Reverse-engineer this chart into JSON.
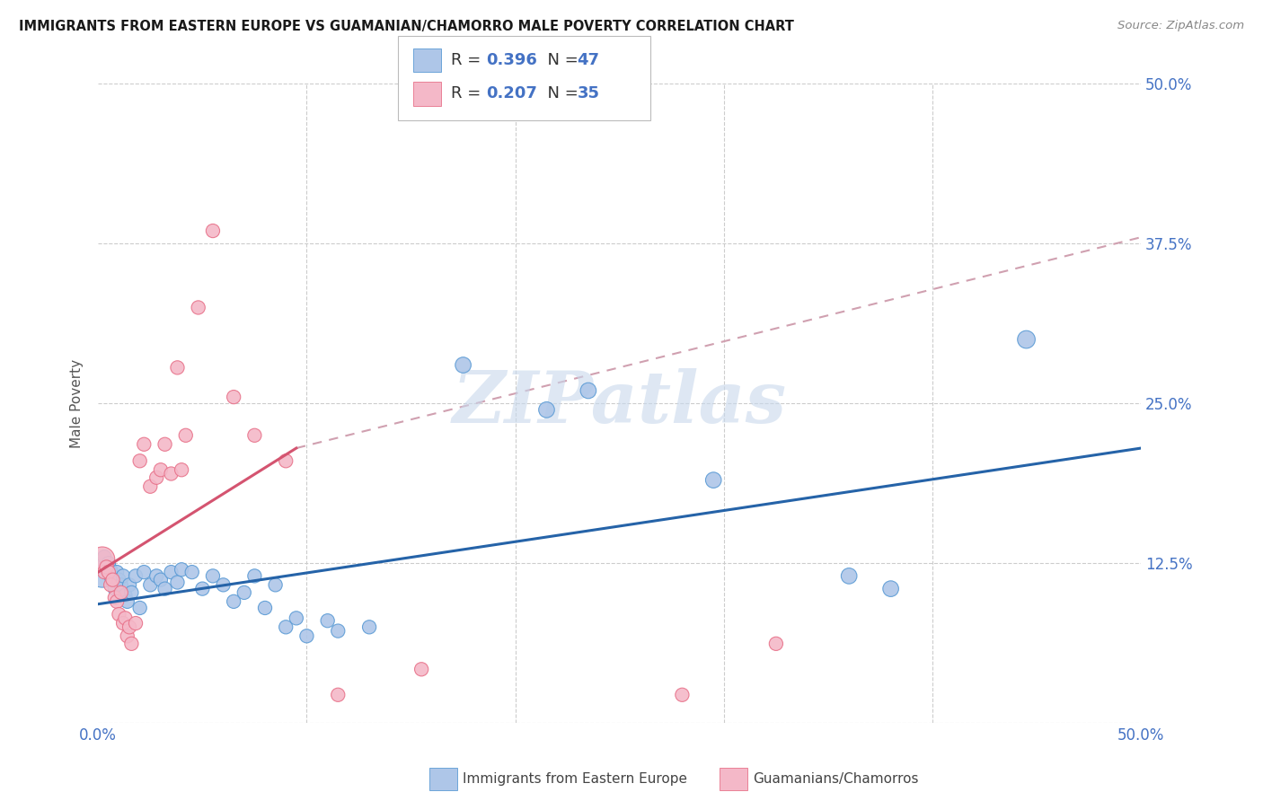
{
  "title": "IMMIGRANTS FROM EASTERN EUROPE VS GUAMANIAN/CHAMORRO MALE POVERTY CORRELATION CHART",
  "source": "Source: ZipAtlas.com",
  "ylabel": "Male Poverty",
  "ytick_values": [
    0.0,
    0.125,
    0.25,
    0.375,
    0.5
  ],
  "ytick_labels": [
    "",
    "12.5%",
    "25.0%",
    "37.5%",
    "50.0%"
  ],
  "xlim": [
    0,
    0.5
  ],
  "ylim": [
    0,
    0.5
  ],
  "blue_label": "Immigrants from Eastern Europe",
  "pink_label": "Guamanians/Chamorros",
  "blue_color": "#aec6e8",
  "pink_color": "#f4b8c8",
  "blue_edge_color": "#5b9bd5",
  "pink_edge_color": "#e8728a",
  "blue_line_color": "#2563a8",
  "pink_line_color": "#d45470",
  "dashed_line_color": "#d0a0b0",
  "watermark_color": "#c8d8ec",
  "blue_points": [
    [
      0.002,
      0.118
    ],
    [
      0.003,
      0.13
    ],
    [
      0.004,
      0.12
    ],
    [
      0.005,
      0.125
    ],
    [
      0.006,
      0.115
    ],
    [
      0.007,
      0.11
    ],
    [
      0.008,
      0.105
    ],
    [
      0.009,
      0.118
    ],
    [
      0.01,
      0.112
    ],
    [
      0.011,
      0.108
    ],
    [
      0.012,
      0.115
    ],
    [
      0.013,
      0.1
    ],
    [
      0.014,
      0.095
    ],
    [
      0.015,
      0.108
    ],
    [
      0.016,
      0.102
    ],
    [
      0.018,
      0.115
    ],
    [
      0.02,
      0.09
    ],
    [
      0.022,
      0.118
    ],
    [
      0.025,
      0.108
    ],
    [
      0.028,
      0.115
    ],
    [
      0.03,
      0.112
    ],
    [
      0.032,
      0.105
    ],
    [
      0.035,
      0.118
    ],
    [
      0.038,
      0.11
    ],
    [
      0.04,
      0.12
    ],
    [
      0.045,
      0.118
    ],
    [
      0.05,
      0.105
    ],
    [
      0.055,
      0.115
    ],
    [
      0.06,
      0.108
    ],
    [
      0.065,
      0.095
    ],
    [
      0.07,
      0.102
    ],
    [
      0.075,
      0.115
    ],
    [
      0.08,
      0.09
    ],
    [
      0.085,
      0.108
    ],
    [
      0.09,
      0.075
    ],
    [
      0.095,
      0.082
    ],
    [
      0.1,
      0.068
    ],
    [
      0.11,
      0.08
    ],
    [
      0.115,
      0.072
    ],
    [
      0.13,
      0.075
    ],
    [
      0.175,
      0.28
    ],
    [
      0.215,
      0.245
    ],
    [
      0.235,
      0.26
    ],
    [
      0.295,
      0.19
    ],
    [
      0.36,
      0.115
    ],
    [
      0.38,
      0.105
    ],
    [
      0.445,
      0.3
    ]
  ],
  "pink_points": [
    [
      0.002,
      0.128
    ],
    [
      0.003,
      0.118
    ],
    [
      0.004,
      0.122
    ],
    [
      0.005,
      0.118
    ],
    [
      0.006,
      0.108
    ],
    [
      0.007,
      0.112
    ],
    [
      0.008,
      0.098
    ],
    [
      0.009,
      0.095
    ],
    [
      0.01,
      0.085
    ],
    [
      0.011,
      0.102
    ],
    [
      0.012,
      0.078
    ],
    [
      0.013,
      0.082
    ],
    [
      0.014,
      0.068
    ],
    [
      0.015,
      0.075
    ],
    [
      0.016,
      0.062
    ],
    [
      0.018,
      0.078
    ],
    [
      0.02,
      0.205
    ],
    [
      0.022,
      0.218
    ],
    [
      0.025,
      0.185
    ],
    [
      0.028,
      0.192
    ],
    [
      0.03,
      0.198
    ],
    [
      0.032,
      0.218
    ],
    [
      0.035,
      0.195
    ],
    [
      0.038,
      0.278
    ],
    [
      0.04,
      0.198
    ],
    [
      0.042,
      0.225
    ],
    [
      0.048,
      0.325
    ],
    [
      0.055,
      0.385
    ],
    [
      0.065,
      0.255
    ],
    [
      0.075,
      0.225
    ],
    [
      0.09,
      0.205
    ],
    [
      0.115,
      0.022
    ],
    [
      0.155,
      0.042
    ],
    [
      0.28,
      0.022
    ],
    [
      0.325,
      0.062
    ]
  ],
  "blue_sizes": [
    600,
    120,
    120,
    120,
    120,
    120,
    120,
    120,
    120,
    120,
    120,
    120,
    120,
    120,
    120,
    120,
    120,
    120,
    120,
    120,
    120,
    120,
    120,
    120,
    120,
    120,
    120,
    120,
    120,
    120,
    120,
    120,
    120,
    120,
    120,
    120,
    120,
    120,
    120,
    120,
    160,
    160,
    160,
    160,
    160,
    160,
    200
  ],
  "pink_sizes": [
    400,
    120,
    120,
    120,
    120,
    120,
    120,
    120,
    120,
    120,
    120,
    120,
    120,
    120,
    120,
    120,
    120,
    120,
    120,
    120,
    120,
    120,
    120,
    120,
    120,
    120,
    120,
    120,
    120,
    120,
    120,
    120,
    120,
    120,
    120
  ],
  "blue_line_x": [
    0.0,
    0.5
  ],
  "blue_line_y": [
    0.093,
    0.215
  ],
  "pink_line_x": [
    0.0,
    0.095
  ],
  "pink_line_y": [
    0.118,
    0.215
  ],
  "dashed_line_x": [
    0.095,
    0.5
  ],
  "dashed_line_y": [
    0.215,
    0.38
  ]
}
